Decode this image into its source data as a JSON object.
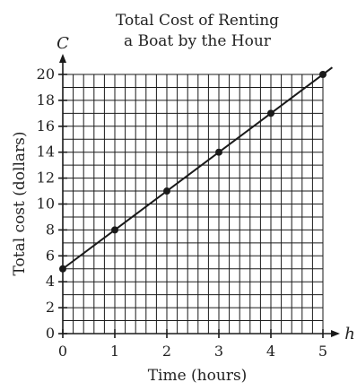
{
  "chart_data": {
    "type": "line",
    "title_lines": [
      "Total Cost of Renting",
      "a Boat by the Hour"
    ],
    "xlabel": "Time (hours)",
    "ylabel": "Total cost (dollars)",
    "x_var": "h",
    "y_var": "C",
    "xlim": [
      0,
      5
    ],
    "ylim": [
      0,
      20
    ],
    "x_ticks": [
      0,
      1,
      2,
      3,
      4,
      5
    ],
    "y_ticks": [
      0,
      2,
      4,
      6,
      8,
      10,
      12,
      14,
      16,
      18,
      20
    ],
    "x_minor_step": 0.2,
    "y_minor_step": 1,
    "grid": true,
    "series": [
      {
        "x": [
          0,
          1,
          2,
          3,
          4,
          5
        ],
        "y": [
          5,
          8,
          11,
          14,
          17,
          20
        ],
        "line_extends_past_points": true
      }
    ]
  }
}
